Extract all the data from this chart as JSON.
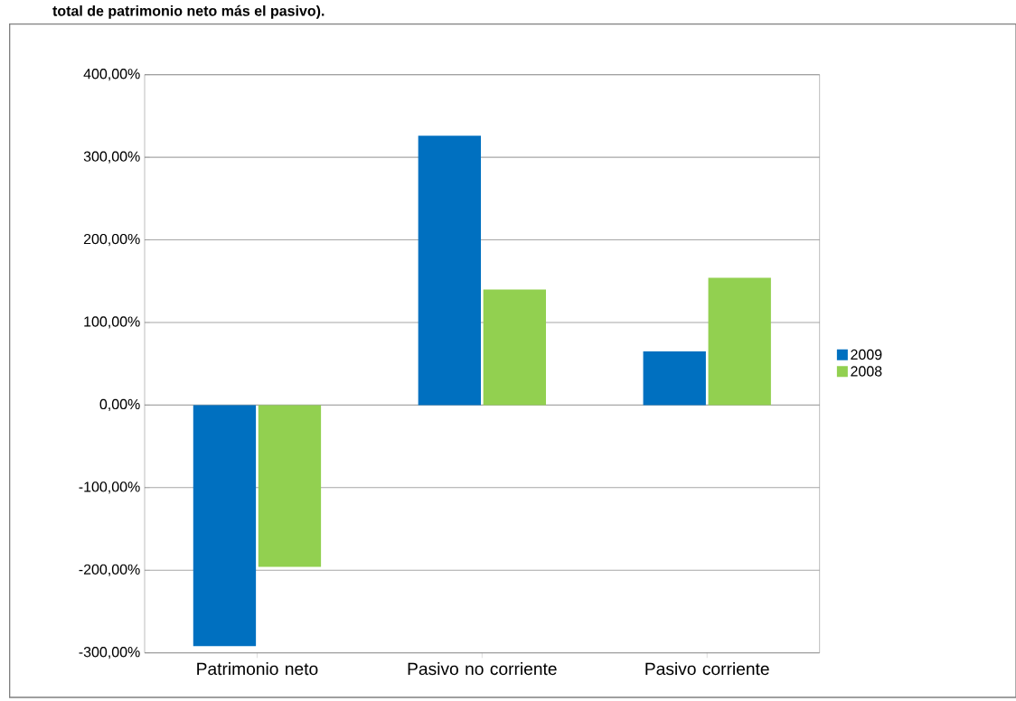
{
  "chart_data": {
    "type": "bar",
    "title": "total de patrimonio neto más el pasivo).",
    "categories": [
      "Patrimonio neto",
      "Pasivo no corriente",
      "Pasivo corriente"
    ],
    "series": [
      {
        "name": "2009",
        "color": "#0070c0",
        "values": [
          -292,
          326,
          65
        ]
      },
      {
        "name": "2008",
        "color": "#92d050",
        "values": [
          -196,
          140,
          154
        ]
      }
    ],
    "ylim": [
      -300,
      400
    ],
    "yticks": [
      {
        "value": -300,
        "label": "-300,00%"
      },
      {
        "value": -200,
        "label": "-200,00%"
      },
      {
        "value": -100,
        "label": "-100,00%"
      },
      {
        "value": 0,
        "label": "0,00%"
      },
      {
        "value": 100,
        "label": "100,00%"
      },
      {
        "value": 200,
        "label": "200,00%"
      },
      {
        "value": 300,
        "label": "300,00%"
      },
      {
        "value": 400,
        "label": "400,00%"
      }
    ],
    "grid": "y",
    "legend": "right"
  }
}
